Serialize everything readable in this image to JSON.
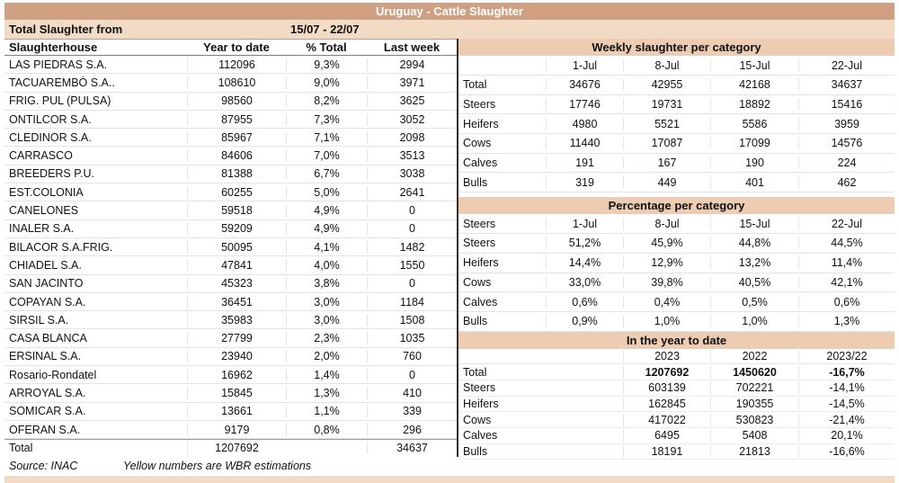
{
  "title": "Uruguay - Cattle Slaughter",
  "subheader": {
    "label": "Total Slaughter from",
    "period": "15/07 - 22/07"
  },
  "colors": {
    "title_bar": "#d0a083",
    "title_text": "#ffffff",
    "subheader_bg": "#f3dac4",
    "band_bg": "#eeccb2",
    "divider": "#2f2f2f",
    "text": "#111111"
  },
  "left_table": {
    "headers": [
      "Slaughterhouse",
      "Year to date",
      "% Total",
      "Last week"
    ],
    "rows": [
      {
        "name": "LAS PIEDRAS S.A.",
        "ytd": "112096",
        "pct": "9,3%",
        "lw": "2994"
      },
      {
        "name": "TACUAREMBÓ S.A..",
        "ytd": "108610",
        "pct": "9,0%",
        "lw": "3971"
      },
      {
        "name": "FRIG. PUL (PULSA)",
        "ytd": "98560",
        "pct": "8,2%",
        "lw": "3625"
      },
      {
        "name": "ONTILCOR S.A.",
        "ytd": "87955",
        "pct": "7,3%",
        "lw": "3052"
      },
      {
        "name": "CLEDINOR S.A.",
        "ytd": "85967",
        "pct": "7,1%",
        "lw": "2098"
      },
      {
        "name": "CARRASCO",
        "ytd": "84606",
        "pct": "7,0%",
        "lw": "3513"
      },
      {
        "name": "BREEDERS P.U.",
        "ytd": "81388",
        "pct": "6,7%",
        "lw": "3038"
      },
      {
        "name": "EST.COLONIA",
        "ytd": "60255",
        "pct": "5,0%",
        "lw": "2641"
      },
      {
        "name": "CANELONES",
        "ytd": "59518",
        "pct": "4,9%",
        "lw": "0"
      },
      {
        "name": "INALER S.A.",
        "ytd": "59209",
        "pct": "4,9%",
        "lw": "0"
      },
      {
        "name": "BILACOR S.A.FRIG.",
        "ytd": "50095",
        "pct": "4,1%",
        "lw": "1482"
      },
      {
        "name": "CHIADEL S.A.",
        "ytd": "47841",
        "pct": "4,0%",
        "lw": "1550"
      },
      {
        "name": "SAN JACINTO",
        "ytd": "45323",
        "pct": "3,8%",
        "lw": "0"
      },
      {
        "name": "COPAYAN S.A.",
        "ytd": "36451",
        "pct": "3,0%",
        "lw": "1184"
      },
      {
        "name": "SIRSIL S.A.",
        "ytd": "35983",
        "pct": "3,0%",
        "lw": "1508"
      },
      {
        "name": "CASA BLANCA",
        "ytd": "27799",
        "pct": "2,3%",
        "lw": "1035"
      },
      {
        "name": "ERSINAL S.A.",
        "ytd": "23940",
        "pct": "2,0%",
        "lw": "760"
      },
      {
        "name": "Rosario-Rondatel",
        "ytd": "16962",
        "pct": "1,4%",
        "lw": "0"
      },
      {
        "name": "ARROYAL S.A.",
        "ytd": "15845",
        "pct": "1,3%",
        "lw": "410"
      },
      {
        "name": "SOMICAR S.A.",
        "ytd": "13661",
        "pct": "1,1%",
        "lw": "339"
      },
      {
        "name": "OFERAN S.A.",
        "ytd": "9179",
        "pct": "0,8%",
        "lw": "296"
      }
    ],
    "total": {
      "name": "Total",
      "ytd": "1207692",
      "pct": "",
      "lw": "34637"
    }
  },
  "footer": {
    "source": "Source: INAC",
    "note": "Yellow numbers are WBR estimations"
  },
  "weekly_table": {
    "title": "Weekly slaughter per category",
    "col_headers": {
      "label": "",
      "c1": "1-Jul",
      "c2": "8-Jul",
      "c3": "15-Jul",
      "c4": "22-Jul"
    },
    "rows": [
      {
        "label": "Total",
        "c1": "34676",
        "c2": "42955",
        "c3": "42168",
        "c4": "34637"
      },
      {
        "label": "Steers",
        "c1": "17746",
        "c2": "19731",
        "c3": "18892",
        "c4": "15416"
      },
      {
        "label": "Heifers",
        "c1": "4980",
        "c2": "5521",
        "c3": "5586",
        "c4": "3959"
      },
      {
        "label": "Cows",
        "c1": "11440",
        "c2": "17087",
        "c3": "17099",
        "c4": "14576"
      },
      {
        "label": "Calves",
        "c1": "191",
        "c2": "167",
        "c3": "190",
        "c4": "224"
      },
      {
        "label": "Bulls",
        "c1": "319",
        "c2": "449",
        "c3": "401",
        "c4": "462"
      }
    ]
  },
  "percentage_table": {
    "title": "Percentage per category",
    "col_headers": {
      "label": "Steers",
      "c1": "1-Jul",
      "c2": "8-Jul",
      "c3": "15-Jul",
      "c4": "22-Jul"
    },
    "rows": [
      {
        "label": "Steers",
        "c1": "51,2%",
        "c2": "45,9%",
        "c3": "44,8%",
        "c4": "44,5%"
      },
      {
        "label": "Heifers",
        "c1": "14,4%",
        "c2": "12,9%",
        "c3": "13,2%",
        "c4": "11,4%"
      },
      {
        "label": "Cows",
        "c1": "33,0%",
        "c2": "39,8%",
        "c3": "40,5%",
        "c4": "42,1%"
      },
      {
        "label": "Calves",
        "c1": "0,6%",
        "c2": "0,4%",
        "c3": "0,5%",
        "c4": "0,6%"
      },
      {
        "label": "Bulls",
        "c1": "0,9%",
        "c2": "1,0%",
        "c3": "1,0%",
        "c4": "1,3%"
      }
    ]
  },
  "ytd_table": {
    "title": "In the year to date",
    "col_headers": {
      "label": "",
      "c1": "2023",
      "c2": "2022",
      "c3": "2023/22"
    },
    "rows": [
      {
        "label": "Total",
        "c1": "1207692",
        "c2": "1450620",
        "c3": "-16,7%"
      },
      {
        "label": "Steers",
        "c1": "603139",
        "c2": "702221",
        "c3": "-14,1%"
      },
      {
        "label": "Heifers",
        "c1": "162845",
        "c2": "190355",
        "c3": "-14,5%"
      },
      {
        "label": "Cows",
        "c1": "417022",
        "c2": "530823",
        "c3": "-21,4%"
      },
      {
        "label": "Calves",
        "c1": "6495",
        "c2": "5408",
        "c3": "20,1%"
      },
      {
        "label": "Bulls",
        "c1": "18191",
        "c2": "21813",
        "c3": "-16,6%"
      }
    ]
  }
}
